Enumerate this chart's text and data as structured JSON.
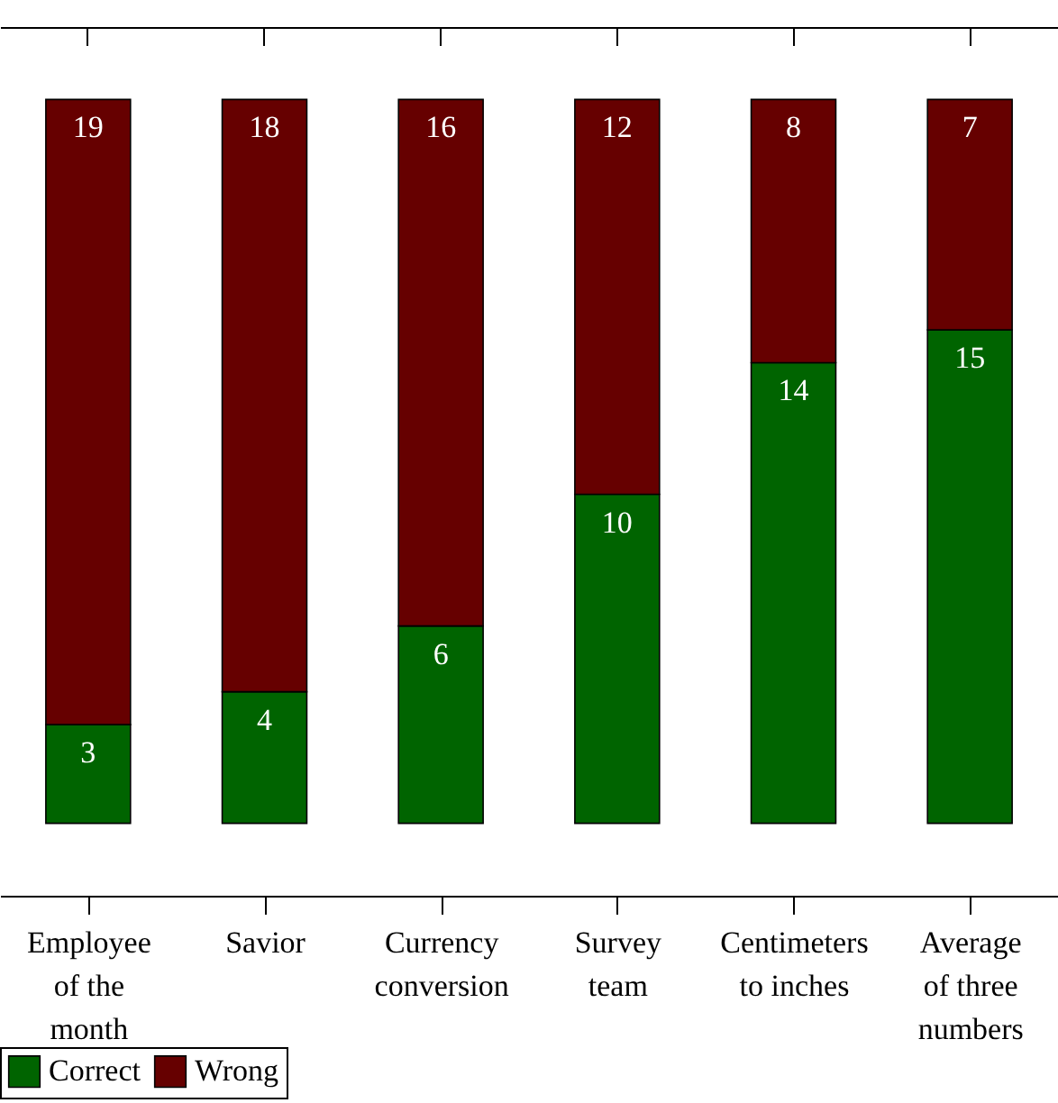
{
  "chart_data": {
    "type": "bar",
    "stacked": true,
    "categories": [
      "Employee of the month",
      "Savior",
      "Currency conversion",
      "Survey team",
      "Centimeters to inches",
      "Average of three numbers"
    ],
    "series": [
      {
        "name": "Correct",
        "color": "#006400",
        "values": [
          3,
          4,
          6,
          10,
          14,
          15
        ]
      },
      {
        "name": "Wrong",
        "color": "#660000",
        "values": [
          19,
          18,
          16,
          12,
          8,
          7
        ]
      }
    ],
    "data_labels": true,
    "legend": "bottom",
    "tick_labels": "x"
  }
}
